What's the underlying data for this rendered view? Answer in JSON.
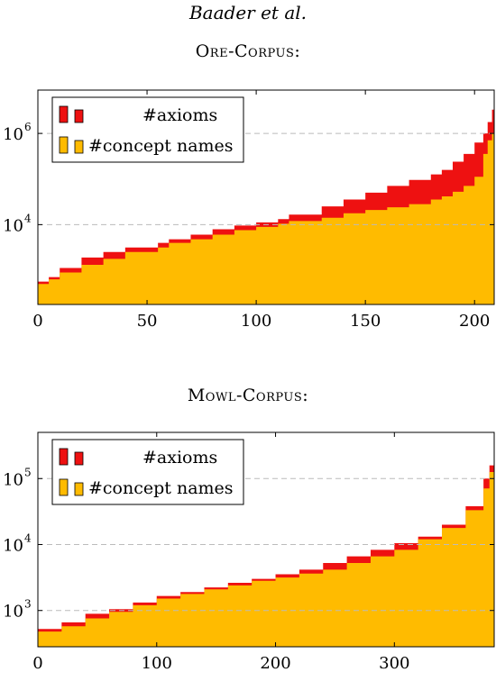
{
  "header": {
    "authors": "Baader et al."
  },
  "colors": {
    "axioms": "#ee1111",
    "concept_names": "#ffbb00",
    "grid": "#bbbbbb"
  },
  "chart_data": [
    {
      "type": "area",
      "title": "Ore-Corpus:",
      "scale": "log",
      "xlim": [
        0,
        209
      ],
      "ylim_log10": [
        2.25,
        6.95
      ],
      "x_ticks": [
        0,
        50,
        100,
        150,
        200
      ],
      "y_ticks": [
        {
          "value": 1000000,
          "label": "10",
          "exp": "6"
        },
        {
          "value": 10000,
          "label": "10",
          "exp": "4"
        }
      ],
      "gridlines_y": [
        1000000,
        10000
      ],
      "grid": "dashed horizontal at labeled ticks",
      "legend_position": "top-left",
      "series": [
        {
          "name": "#axioms",
          "color": "#ee1111",
          "log_points": [
            [
              0,
              2.75
            ],
            [
              5,
              2.85
            ],
            [
              10,
              3.05
            ],
            [
              20,
              3.28
            ],
            [
              30,
              3.4
            ],
            [
              40,
              3.5
            ],
            [
              55,
              3.6
            ],
            [
              60,
              3.68
            ],
            [
              70,
              3.78
            ],
            [
              80,
              3.9
            ],
            [
              90,
              3.98
            ],
            [
              100,
              4.05
            ],
            [
              110,
              4.12
            ],
            [
              115,
              4.22
            ],
            [
              130,
              4.4
            ],
            [
              140,
              4.55
            ],
            [
              150,
              4.7
            ],
            [
              160,
              4.85
            ],
            [
              170,
              4.98
            ],
            [
              180,
              5.1
            ],
            [
              185,
              5.2
            ],
            [
              190,
              5.38
            ],
            [
              195,
              5.55
            ],
            [
              200,
              5.8
            ],
            [
              204,
              6.0
            ],
            [
              206,
              6.25
            ],
            [
              208,
              6.52
            ],
            [
              209,
              6.55
            ]
          ]
        },
        {
          "name": "#concept names",
          "color": "#ffbb00",
          "log_points": [
            [
              0,
              2.7
            ],
            [
              5,
              2.8
            ],
            [
              10,
              2.95
            ],
            [
              20,
              3.12
            ],
            [
              30,
              3.25
            ],
            [
              40,
              3.4
            ],
            [
              55,
              3.5
            ],
            [
              60,
              3.6
            ],
            [
              70,
              3.68
            ],
            [
              80,
              3.78
            ],
            [
              90,
              3.88
            ],
            [
              100,
              3.95
            ],
            [
              110,
              4.02
            ],
            [
              115,
              4.08
            ],
            [
              130,
              4.15
            ],
            [
              140,
              4.25
            ],
            [
              150,
              4.32
            ],
            [
              160,
              4.38
            ],
            [
              170,
              4.45
            ],
            [
              180,
              4.55
            ],
            [
              185,
              4.62
            ],
            [
              190,
              4.72
            ],
            [
              195,
              4.85
            ],
            [
              200,
              5.05
            ],
            [
              204,
              5.55
            ],
            [
              206,
              5.85
            ],
            [
              208,
              6.0
            ],
            [
              209,
              6.0
            ]
          ]
        }
      ],
      "x_axis_label_values": [
        "0",
        "50",
        "100",
        "150",
        "200"
      ]
    },
    {
      "type": "area",
      "title": "Mowl-Corpus:",
      "scale": "log",
      "xlim": [
        0,
        384
      ],
      "ylim_log10": [
        2.45,
        5.7
      ],
      "x_ticks": [
        0,
        100,
        200,
        300
      ],
      "y_ticks": [
        {
          "value": 100000,
          "label": "10",
          "exp": "5"
        },
        {
          "value": 10000,
          "label": "10",
          "exp": "4"
        },
        {
          "value": 1000,
          "label": "10",
          "exp": "3"
        }
      ],
      "gridlines_y": [
        100000,
        10000,
        1000
      ],
      "grid": "dashed horizontal at labeled ticks",
      "legend_position": "top-left",
      "series": [
        {
          "name": "#axioms",
          "color": "#ee1111",
          "log_points": [
            [
              0,
              2.72
            ],
            [
              20,
              2.82
            ],
            [
              40,
              2.95
            ],
            [
              60,
              3.02
            ],
            [
              80,
              3.12
            ],
            [
              100,
              3.22
            ],
            [
              120,
              3.28
            ],
            [
              140,
              3.35
            ],
            [
              160,
              3.42
            ],
            [
              180,
              3.48
            ],
            [
              200,
              3.55
            ],
            [
              220,
              3.62
            ],
            [
              240,
              3.72
            ],
            [
              260,
              3.82
            ],
            [
              280,
              3.92
            ],
            [
              300,
              4.02
            ],
            [
              320,
              4.12
            ],
            [
              340,
              4.3
            ],
            [
              360,
              4.58
            ],
            [
              375,
              5.0
            ],
            [
              380,
              5.2
            ],
            [
              384,
              5.45
            ]
          ]
        },
        {
          "name": "#concept names",
          "color": "#ffbb00",
          "log_points": [
            [
              0,
              2.68
            ],
            [
              20,
              2.76
            ],
            [
              40,
              2.88
            ],
            [
              60,
              2.98
            ],
            [
              80,
              3.08
            ],
            [
              100,
              3.18
            ],
            [
              120,
              3.25
            ],
            [
              140,
              3.32
            ],
            [
              160,
              3.38
            ],
            [
              180,
              3.45
            ],
            [
              200,
              3.5
            ],
            [
              220,
              3.56
            ],
            [
              240,
              3.62
            ],
            [
              260,
              3.72
            ],
            [
              280,
              3.82
            ],
            [
              300,
              3.92
            ],
            [
              320,
              4.08
            ],
            [
              340,
              4.25
            ],
            [
              360,
              4.52
            ],
            [
              375,
              4.85
            ],
            [
              380,
              5.1
            ],
            [
              384,
              5.3
            ]
          ]
        }
      ],
      "x_axis_label_values": [
        "0",
        "100",
        "200",
        "300"
      ]
    }
  ]
}
